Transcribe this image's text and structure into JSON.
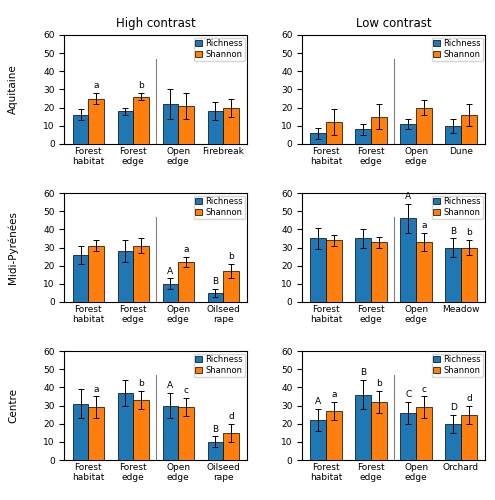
{
  "chart_data": [
    {
      "type": "bar",
      "title": "High contrast",
      "row_label": "Aquitaine",
      "categories": [
        "Forest\nhabitat",
        "Forest edge",
        "Open edge",
        "Firebreak"
      ],
      "series": [
        {
          "name": "Richness",
          "values": [
            16,
            18,
            22,
            18
          ],
          "error": [
            3,
            2,
            8,
            5
          ]
        },
        {
          "name": "Shannon",
          "values": [
            25,
            26,
            21,
            20
          ],
          "error": [
            3,
            2,
            7,
            5
          ],
          "annotations": [
            "a",
            "b",
            null,
            null
          ]
        }
      ],
      "divider_after": "Forest edge",
      "ylim": [
        0,
        60
      ],
      "yticks": [
        0,
        10,
        20,
        30,
        40,
        50,
        60
      ],
      "legend": "upper right"
    },
    {
      "type": "bar",
      "title": "Low contrast",
      "categories": [
        "Forest\nhabitat",
        "Forest edge",
        "Open edge",
        "Dune"
      ],
      "series": [
        {
          "name": "Richness",
          "values": [
            6,
            8,
            11,
            10
          ],
          "error": [
            3,
            3,
            3,
            4
          ]
        },
        {
          "name": "Shannon",
          "values": [
            12,
            15,
            20,
            16
          ],
          "error": [
            7,
            7,
            4,
            6
          ]
        }
      ],
      "divider_after": "Forest edge",
      "ylim": [
        0,
        60
      ],
      "yticks": [
        0,
        10,
        20,
        30,
        40,
        50,
        60
      ],
      "legend": "upper right"
    },
    {
      "type": "bar",
      "row_label": "Midi-Pyrénées",
      "categories": [
        "Forest\nhabitat",
        "Forest edge",
        "Open edge",
        "Oilseed rape"
      ],
      "series": [
        {
          "name": "Richness",
          "values": [
            26,
            28,
            10,
            5
          ],
          "error": [
            5,
            6,
            3,
            2
          ],
          "annotations": [
            null,
            null,
            "A",
            "B"
          ]
        },
        {
          "name": "Shannon",
          "values": [
            31,
            31,
            22,
            17
          ],
          "error": [
            3,
            4,
            3,
            4
          ],
          "annotations": [
            null,
            null,
            "a",
            "b"
          ]
        }
      ],
      "divider_after": "Forest edge",
      "ylim": [
        0,
        60
      ],
      "yticks": [
        0,
        10,
        20,
        30,
        40,
        50,
        60
      ],
      "legend": "upper right"
    },
    {
      "type": "bar",
      "categories": [
        "Forest\nhabitat",
        "Forest edge",
        "Open edge",
        "Meadow"
      ],
      "series": [
        {
          "name": "Richness",
          "values": [
            35,
            35,
            46,
            30
          ],
          "error": [
            6,
            5,
            8,
            5
          ],
          "annotations": [
            null,
            null,
            "A",
            "B"
          ]
        },
        {
          "name": "Shannon",
          "values": [
            34,
            33,
            33,
            30
          ],
          "error": [
            3,
            3,
            5,
            4
          ],
          "annotations": [
            null,
            null,
            "a",
            "b"
          ]
        }
      ],
      "divider_after": "Forest edge",
      "ylim": [
        0,
        60
      ],
      "yticks": [
        0,
        10,
        20,
        30,
        40,
        50,
        60
      ],
      "legend": "upper right"
    },
    {
      "type": "bar",
      "row_label": "Centre",
      "categories": [
        "Forest\nhabitat",
        "Forest edge",
        "Open edge",
        "Oilseed rape"
      ],
      "series": [
        {
          "name": "Richness",
          "values": [
            31,
            37,
            30,
            10
          ],
          "error": [
            8,
            7,
            7,
            3
          ],
          "annotations": [
            null,
            null,
            "A",
            "B"
          ]
        },
        {
          "name": "Shannon",
          "values": [
            29,
            33,
            29,
            15
          ],
          "error": [
            6,
            5,
            5,
            5
          ],
          "annotations": [
            "a",
            "b",
            "c",
            "d"
          ]
        }
      ],
      "divider_after": "Forest edge",
      "ylim": [
        0,
        60
      ],
      "yticks": [
        0,
        10,
        20,
        30,
        40,
        50,
        60
      ],
      "legend": "upper right"
    },
    {
      "type": "bar",
      "categories": [
        "Forest\nhabitat",
        "Forest edge",
        "Open edge",
        "Orchard"
      ],
      "series": [
        {
          "name": "Richness",
          "values": [
            22,
            36,
            26,
            20
          ],
          "error": [
            6,
            8,
            6,
            5
          ],
          "annotations": [
            "A",
            "B",
            "C",
            "D"
          ]
        },
        {
          "name": "Shannon",
          "values": [
            27,
            32,
            29,
            25
          ],
          "error": [
            5,
            6,
            6,
            5
          ],
          "annotations": [
            "a",
            "b",
            "c",
            "d"
          ]
        }
      ],
      "divider_after": "Forest edge",
      "ylim": [
        0,
        60
      ],
      "yticks": [
        0,
        10,
        20,
        30,
        40,
        50,
        60
      ],
      "legend": "upper right"
    }
  ]
}
